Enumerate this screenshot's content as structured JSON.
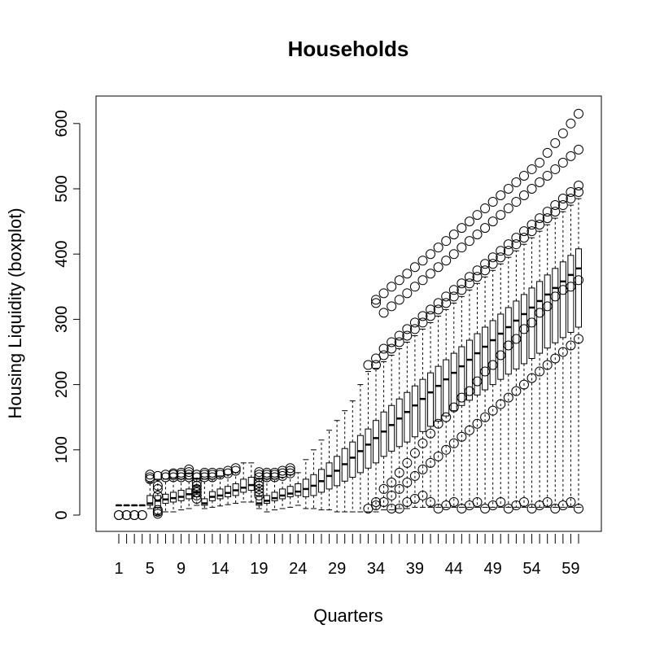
{
  "chart_data": {
    "type": "boxplot",
    "title": "Households",
    "xlabel": "Quarters",
    "ylabel": "Housing Liquidity (boxplot)",
    "x_tick_labels": [
      "1",
      "5",
      "9",
      "14",
      "19",
      "24",
      "29",
      "34",
      "39",
      "44",
      "49",
      "54",
      "59"
    ],
    "x_tick_positions": [
      1,
      5,
      9,
      14,
      19,
      24,
      29,
      34,
      39,
      44,
      49,
      54,
      59
    ],
    "y_ticks": [
      0,
      100,
      200,
      300,
      400,
      500,
      600
    ],
    "y_tick_labels": [
      "0",
      "100",
      "200",
      "300",
      "400",
      "500",
      "600"
    ],
    "xlim": [
      0.5,
      60.5
    ],
    "ylim": [
      -25,
      642
    ],
    "n_quarters": 60,
    "grid": false,
    "legend": "none",
    "series": [
      {
        "stats": [
          {
            "x": 1,
            "min": 15,
            "q1": 15,
            "median": 15,
            "q3": 15,
            "max": 15,
            "outliers": [
              0,
              0
            ]
          },
          {
            "x": 2,
            "min": 15,
            "q1": 15,
            "median": 15,
            "q3": 15,
            "max": 15,
            "outliers": [
              0,
              0
            ]
          },
          {
            "x": 3,
            "min": 15,
            "q1": 15,
            "median": 15,
            "q3": 15,
            "max": 15,
            "outliers": [
              0,
              0
            ]
          },
          {
            "x": 4,
            "min": 15,
            "q1": 15,
            "median": 15,
            "q3": 15,
            "max": 15,
            "outliers": [
              0,
              0
            ]
          },
          {
            "x": 5,
            "min": 10,
            "q1": 15,
            "median": 18,
            "q3": 30,
            "max": 50,
            "outliers": [
              55,
              58,
              62
            ]
          },
          {
            "x": 6,
            "min": 0,
            "q1": 12,
            "median": 22,
            "q3": 30,
            "max": 55,
            "outliers": [
              2,
              5,
              8,
              30,
              40,
              45,
              60
            ]
          },
          {
            "x": 7,
            "min": 5,
            "q1": 18,
            "median": 24,
            "q3": 32,
            "max": 55,
            "outliers": [
              58,
              62
            ]
          },
          {
            "x": 8,
            "min": 5,
            "q1": 20,
            "median": 26,
            "q3": 35,
            "max": 55,
            "outliers": [
              58,
              62,
              64
            ]
          },
          {
            "x": 9,
            "min": 8,
            "q1": 22,
            "median": 28,
            "q3": 38,
            "max": 55,
            "outliers": [
              58,
              62,
              65
            ]
          },
          {
            "x": 10,
            "min": 10,
            "q1": 25,
            "median": 32,
            "q3": 40,
            "max": 55,
            "outliers": [
              58,
              62,
              66,
              70
            ]
          },
          {
            "x": 11,
            "min": 15,
            "q1": 28,
            "median": 35,
            "q3": 45,
            "max": 55,
            "outliers": [
              25,
              30,
              35,
              40,
              45,
              50,
              58,
              62
            ]
          },
          {
            "x": 12,
            "min": 10,
            "q1": 15,
            "median": 18,
            "q3": 25,
            "max": 55,
            "outliers": [
              58,
              62,
              65
            ]
          },
          {
            "x": 13,
            "min": 12,
            "q1": 22,
            "median": 28,
            "q3": 36,
            "max": 55,
            "outliers": [
              58,
              62,
              65
            ]
          },
          {
            "x": 14,
            "min": 14,
            "q1": 25,
            "median": 30,
            "q3": 40,
            "max": 60,
            "outliers": [
              62,
              65
            ]
          },
          {
            "x": 15,
            "min": 16,
            "q1": 28,
            "median": 34,
            "q3": 44,
            "max": 62,
            "outliers": [
              64,
              68
            ]
          },
          {
            "x": 16,
            "min": 18,
            "q1": 30,
            "median": 38,
            "q3": 48,
            "max": 65,
            "outliers": [
              68,
              72
            ]
          },
          {
            "x": 17,
            "min": 20,
            "q1": 35,
            "median": 42,
            "q3": 55,
            "max": 80,
            "outliers": []
          },
          {
            "x": 18,
            "min": 20,
            "q1": 38,
            "median": 46,
            "q3": 58,
            "max": 80,
            "outliers": []
          },
          {
            "x": 19,
            "min": 10,
            "q1": 15,
            "median": 18,
            "q3": 30,
            "max": 55,
            "outliers": [
              30,
              35,
              40,
              45,
              50,
              58,
              62,
              66
            ]
          },
          {
            "x": 20,
            "min": 5,
            "q1": 18,
            "median": 22,
            "q3": 30,
            "max": 55,
            "outliers": [
              58,
              62,
              65
            ]
          },
          {
            "x": 21,
            "min": 8,
            "q1": 22,
            "median": 26,
            "q3": 35,
            "max": 55,
            "outliers": [
              58,
              62,
              65
            ]
          },
          {
            "x": 22,
            "min": 10,
            "q1": 25,
            "median": 30,
            "q3": 40,
            "max": 58,
            "outliers": [
              60,
              64,
              68
            ]
          },
          {
            "x": 23,
            "min": 12,
            "q1": 28,
            "median": 33,
            "q3": 44,
            "max": 62,
            "outliers": [
              64,
              68,
              72
            ]
          },
          {
            "x": 24,
            "min": 15,
            "q1": 30,
            "median": 36,
            "q3": 48,
            "max": 65,
            "outliers": []
          },
          {
            "x": 25,
            "min": 10,
            "q1": 28,
            "median": 40,
            "q3": 55,
            "max": 85,
            "outliers": []
          },
          {
            "x": 26,
            "min": 10,
            "q1": 30,
            "median": 45,
            "q3": 62,
            "max": 100,
            "outliers": []
          },
          {
            "x": 27,
            "min": 8,
            "q1": 35,
            "median": 52,
            "q3": 70,
            "max": 115,
            "outliers": []
          },
          {
            "x": 28,
            "min": 8,
            "q1": 40,
            "median": 60,
            "q3": 80,
            "max": 130,
            "outliers": []
          },
          {
            "x": 29,
            "min": 5,
            "q1": 45,
            "median": 68,
            "q3": 90,
            "max": 145,
            "outliers": []
          },
          {
            "x": 30,
            "min": 5,
            "q1": 52,
            "median": 78,
            "q3": 102,
            "max": 160,
            "outliers": []
          },
          {
            "x": 31,
            "min": 5,
            "q1": 58,
            "median": 88,
            "q3": 112,
            "max": 175,
            "outliers": []
          },
          {
            "x": 32,
            "min": 5,
            "q1": 65,
            "median": 98,
            "q3": 122,
            "max": 200,
            "outliers": []
          },
          {
            "x": 33,
            "min": 5,
            "q1": 72,
            "median": 108,
            "q3": 132,
            "max": 220,
            "outliers": [
              10,
              230
            ]
          },
          {
            "x": 34,
            "min": 5,
            "q1": 80,
            "median": 118,
            "q3": 145,
            "max": 225,
            "outliers": [
              15,
              20,
              230,
              240,
              325,
              330
            ]
          },
          {
            "x": 35,
            "min": 8,
            "q1": 90,
            "median": 128,
            "q3": 158,
            "max": 235,
            "outliers": [
              20,
              40,
              245,
              255,
              310,
              340
            ]
          },
          {
            "x": 36,
            "min": 8,
            "q1": 98,
            "median": 138,
            "q3": 168,
            "max": 245,
            "outliers": [
              10,
              30,
              50,
              255,
              265,
              320,
              350
            ]
          },
          {
            "x": 37,
            "min": 10,
            "q1": 105,
            "median": 148,
            "q3": 178,
            "max": 255,
            "outliers": [
              10,
              40,
              65,
              265,
              275,
              330,
              360
            ]
          },
          {
            "x": 38,
            "min": 10,
            "q1": 112,
            "median": 158,
            "q3": 188,
            "max": 265,
            "outliers": [
              20,
              50,
              80,
              275,
              285,
              340,
              370
            ]
          },
          {
            "x": 39,
            "min": 12,
            "q1": 120,
            "median": 168,
            "q3": 198,
            "max": 275,
            "outliers": [
              25,
              60,
              95,
              285,
              295,
              350,
              380
            ]
          },
          {
            "x": 40,
            "min": 12,
            "q1": 128,
            "median": 178,
            "q3": 208,
            "max": 285,
            "outliers": [
              30,
              70,
              110,
              295,
              305,
              360,
              390
            ]
          },
          {
            "x": 41,
            "min": 12,
            "q1": 136,
            "median": 188,
            "q3": 218,
            "max": 295,
            "outliers": [
              20,
              80,
              125,
              305,
              315,
              370,
              400
            ]
          },
          {
            "x": 42,
            "min": 12,
            "q1": 144,
            "median": 198,
            "q3": 228,
            "max": 305,
            "outliers": [
              10,
              90,
              140,
              315,
              325,
              380,
              410
            ]
          },
          {
            "x": 43,
            "min": 12,
            "q1": 152,
            "median": 208,
            "q3": 238,
            "max": 315,
            "outliers": [
              15,
              100,
              150,
              325,
              335,
              390,
              420
            ]
          },
          {
            "x": 44,
            "min": 12,
            "q1": 160,
            "median": 218,
            "q3": 248,
            "max": 325,
            "outliers": [
              20,
              110,
              165,
              335,
              345,
              400,
              430
            ]
          },
          {
            "x": 45,
            "min": 12,
            "q1": 168,
            "median": 228,
            "q3": 258,
            "max": 335,
            "outliers": [
              10,
              120,
              180,
              345,
              355,
              410,
              440
            ]
          },
          {
            "x": 46,
            "min": 12,
            "q1": 176,
            "median": 238,
            "q3": 268,
            "max": 345,
            "outliers": [
              15,
              130,
              190,
              355,
              365,
              420,
              450
            ]
          },
          {
            "x": 47,
            "min": 12,
            "q1": 184,
            "median": 248,
            "q3": 278,
            "max": 355,
            "outliers": [
              20,
              140,
              205,
              365,
              375,
              430,
              460
            ]
          },
          {
            "x": 48,
            "min": 12,
            "q1": 192,
            "median": 258,
            "q3": 288,
            "max": 365,
            "outliers": [
              10,
              150,
              220,
              375,
              385,
              440,
              470
            ]
          },
          {
            "x": 49,
            "min": 12,
            "q1": 200,
            "median": 268,
            "q3": 298,
            "max": 375,
            "outliers": [
              15,
              160,
              230,
              385,
              395,
              450,
              480
            ]
          },
          {
            "x": 50,
            "min": 12,
            "q1": 208,
            "median": 278,
            "q3": 308,
            "max": 385,
            "outliers": [
              20,
              170,
              245,
              395,
              405,
              460,
              490
            ]
          },
          {
            "x": 51,
            "min": 12,
            "q1": 216,
            "median": 288,
            "q3": 318,
            "max": 395,
            "outliers": [
              10,
              180,
              260,
              405,
              415,
              470,
              500
            ]
          },
          {
            "x": 52,
            "min": 12,
            "q1": 224,
            "median": 298,
            "q3": 328,
            "max": 405,
            "outliers": [
              15,
              190,
              270,
              415,
              425,
              480,
              510
            ]
          },
          {
            "x": 53,
            "min": 12,
            "q1": 232,
            "median": 308,
            "q3": 338,
            "max": 415,
            "outliers": [
              20,
              200,
              285,
              425,
              435,
              490,
              520
            ]
          },
          {
            "x": 54,
            "min": 12,
            "q1": 240,
            "median": 318,
            "q3": 348,
            "max": 425,
            "outliers": [
              10,
              210,
              295,
              435,
              445,
              500,
              530
            ]
          },
          {
            "x": 55,
            "min": 12,
            "q1": 248,
            "median": 328,
            "q3": 358,
            "max": 435,
            "outliers": [
              15,
              220,
              310,
              445,
              455,
              510,
              540
            ]
          },
          {
            "x": 56,
            "min": 12,
            "q1": 256,
            "median": 338,
            "q3": 368,
            "max": 445,
            "outliers": [
              20,
              230,
              320,
              455,
              465,
              520,
              555
            ]
          },
          {
            "x": 57,
            "min": 12,
            "q1": 264,
            "median": 348,
            "q3": 378,
            "max": 455,
            "outliers": [
              10,
              240,
              335,
              465,
              475,
              530,
              570
            ]
          },
          {
            "x": 58,
            "min": 12,
            "q1": 272,
            "median": 358,
            "q3": 388,
            "max": 465,
            "outliers": [
              15,
              250,
              345,
              475,
              485,
              540,
              585
            ]
          },
          {
            "x": 59,
            "min": 12,
            "q1": 280,
            "median": 368,
            "q3": 398,
            "max": 475,
            "outliers": [
              20,
              260,
              350,
              485,
              495,
              550,
              600
            ]
          },
          {
            "x": 60,
            "min": 12,
            "q1": 288,
            "median": 378,
            "q3": 408,
            "max": 485,
            "outliers": [
              10,
              270,
              360,
              495,
              505,
              560,
              615
            ]
          }
        ]
      }
    ]
  }
}
